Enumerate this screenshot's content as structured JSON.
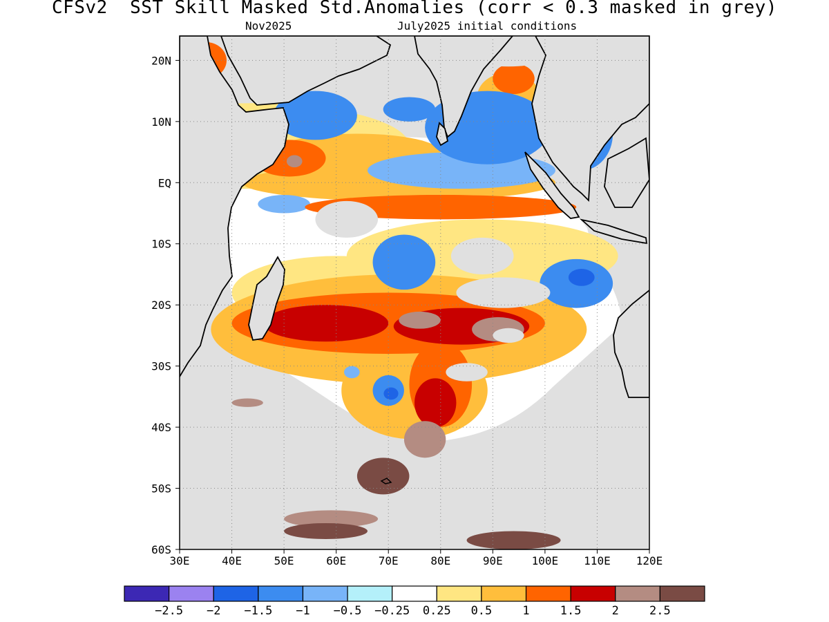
{
  "title": "CFSv2  SST Skill Masked Std.Anomalies (corr < 0.3 masked in grey)",
  "subtitle_left": "Nov2025",
  "subtitle_right": "July2025 initial conditions",
  "map": {
    "lon_range": [
      30,
      120
    ],
    "lat_range": [
      -60,
      24
    ],
    "mask_color": "#e0e0e0",
    "land_color": "#e0e0e0",
    "coastline_color": "#000000",
    "grid": "dotted",
    "x_ticks": [
      "30E",
      "40E",
      "50E",
      "60E",
      "70E",
      "80E",
      "90E",
      "100E",
      "110E",
      "120E"
    ],
    "y_ticks": [
      "20N",
      "10N",
      "EQ",
      "10S",
      "20S",
      "30S",
      "40S",
      "50S",
      "60S"
    ]
  },
  "colorbar": {
    "colors": [
      "#3c28b4",
      "#9b82f0",
      "#1e64e6",
      "#3c8cf0",
      "#78b4f8",
      "#b4f0fa",
      "#ffffff",
      "#ffe682",
      "#ffbe3c",
      "#ff6400",
      "#c80000",
      "#b48c82",
      "#7a4b44"
    ],
    "labels": [
      "-2.5",
      "-2",
      "-1.5",
      "-1",
      "-0.5",
      "-0.25",
      "0.25",
      "0.5",
      "1",
      "1.5",
      "2",
      "2.5"
    ]
  },
  "anomaly_regions": [
    {
      "level": 0.25,
      "lon": 44,
      "lat": 6,
      "rx": 30,
      "ry": 7
    },
    {
      "level": 0.25,
      "lon": 88,
      "lat": -12,
      "rx": 26,
      "ry": 6
    },
    {
      "level": 0.25,
      "lon": 60,
      "lat": -18,
      "rx": 20,
      "ry": 6
    },
    {
      "level": 0.5,
      "lon": 72,
      "lat": 0,
      "rx": 30,
      "ry": 3
    },
    {
      "level": 0.5,
      "lon": 64,
      "lat": 5,
      "rx": 16,
      "ry": 3
    },
    {
      "level": 1,
      "lon": 80,
      "lat": -4,
      "rx": 26,
      "ry": 2
    },
    {
      "level": 0.5,
      "lon": 93,
      "lat": 14,
      "rx": 6,
      "ry": 4
    },
    {
      "level": 1,
      "lon": 94,
      "lat": 17,
      "rx": 4,
      "ry": 2.5
    },
    {
      "level": 0.5,
      "lon": 116,
      "lat": 17,
      "rx": 5,
      "ry": 6
    },
    {
      "level": 1,
      "lon": 35,
      "lat": 20,
      "rx": 4,
      "ry": 3
    },
    {
      "level": 1,
      "lon": 51,
      "lat": 4,
      "rx": 7,
      "ry": 3
    },
    {
      "level": 2,
      "lon": 52,
      "lat": 3.5,
      "rx": 1.5,
      "ry": 1
    },
    {
      "level": 0.5,
      "lon": 72,
      "lat": -24,
      "rx": 36,
      "ry": 9
    },
    {
      "level": 0.5,
      "lon": 75,
      "lat": -34,
      "rx": 14,
      "ry": 8
    },
    {
      "level": 1,
      "lon": 70,
      "lat": -23,
      "rx": 30,
      "ry": 5
    },
    {
      "level": 1,
      "lon": 80,
      "lat": -33,
      "rx": 6,
      "ry": 7
    },
    {
      "level": 1.5,
      "lon": 58,
      "lat": -23,
      "rx": 12,
      "ry": 3
    },
    {
      "level": 1.5,
      "lon": 84,
      "lat": -23.5,
      "rx": 13,
      "ry": 3
    },
    {
      "level": 1.5,
      "lon": 79,
      "lat": -36,
      "rx": 4,
      "ry": 4
    },
    {
      "level": 2,
      "lon": 76,
      "lat": -22.5,
      "rx": 4,
      "ry": 1.4
    },
    {
      "level": 2,
      "lon": 91,
      "lat": -24,
      "rx": 5,
      "ry": 2
    },
    {
      "level": 2.5,
      "lon": 93,
      "lat": -25,
      "rx": 2.5,
      "ry": 1
    },
    {
      "level": 2,
      "lon": 77,
      "lat": -42,
      "rx": 4,
      "ry": 3
    },
    {
      "level": 2,
      "lon": 59,
      "lat": -55,
      "rx": 9,
      "ry": 1.4
    },
    {
      "level": 2.5,
      "lon": 58,
      "lat": -57,
      "rx": 8,
      "ry": 1.3
    },
    {
      "level": 2.5,
      "lon": 69,
      "lat": -48,
      "rx": 5,
      "ry": 3
    },
    {
      "level": 2.5,
      "lon": 94,
      "lat": -58.5,
      "rx": 9,
      "ry": 1.5
    },
    {
      "level": 2,
      "lon": 43,
      "lat": -36,
      "rx": 3,
      "ry": 0.7
    },
    {
      "level": -0.5,
      "lon": 84,
      "lat": 2,
      "rx": 18,
      "ry": 3
    },
    {
      "level": -1,
      "lon": 89,
      "lat": 9,
      "rx": 12,
      "ry": 6
    },
    {
      "level": -1,
      "lon": 56,
      "lat": 11,
      "rx": 8,
      "ry": 4
    },
    {
      "level": -1,
      "lon": 74,
      "lat": 12,
      "rx": 5,
      "ry": 2
    },
    {
      "level": -1,
      "lon": 107,
      "lat": 8,
      "rx": 6,
      "ry": 6
    },
    {
      "level": -1.5,
      "lon": 106,
      "lat": 10,
      "rx": 2.5,
      "ry": 2
    },
    {
      "level": -1,
      "lon": 73,
      "lat": -13,
      "rx": 6,
      "ry": 4.5
    },
    {
      "level": -1,
      "lon": 106,
      "lat": -16.5,
      "rx": 7,
      "ry": 4
    },
    {
      "level": -1.5,
      "lon": 107,
      "lat": -15.5,
      "rx": 2.5,
      "ry": 1.4
    },
    {
      "level": -1,
      "lon": 70,
      "lat": -34,
      "rx": 3,
      "ry": 2.5
    },
    {
      "level": -1.5,
      "lon": 70.5,
      "lat": -34.5,
      "rx": 1.4,
      "ry": 1
    },
    {
      "level": -0.5,
      "lon": 50,
      "lat": -3.5,
      "rx": 5,
      "ry": 1.5
    },
    {
      "level": -0.5,
      "lon": 63,
      "lat": -31,
      "rx": 1.5,
      "ry": 1
    }
  ],
  "masked_patches": [
    {
      "lon": 62,
      "lat": -6,
      "rx": 6,
      "ry": 3
    },
    {
      "lon": 92,
      "lat": -18,
      "rx": 9,
      "ry": 2.5
    },
    {
      "lon": 88,
      "lat": -12,
      "rx": 6,
      "ry": 3
    },
    {
      "lon": 93,
      "lat": -25,
      "rx": 3,
      "ry": 1.2
    },
    {
      "lon": 85,
      "lat": -31,
      "rx": 4,
      "ry": 1.5
    },
    {
      "lon": 93,
      "lat": 22,
      "rx": 10,
      "ry": 3
    },
    {
      "lon": 48,
      "lat": 15,
      "rx": 5,
      "ry": 2
    }
  ]
}
